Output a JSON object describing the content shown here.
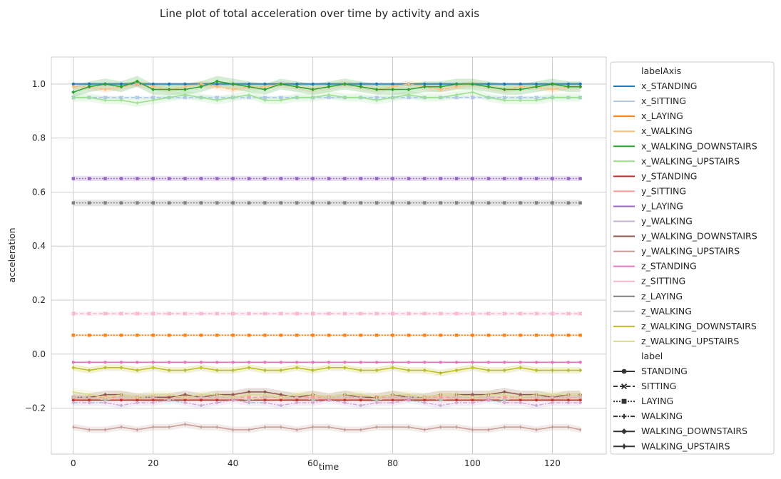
{
  "chart_data": {
    "type": "line",
    "title": "Line plot of total acceleration over time by activity and axis",
    "xlabel": "time",
    "ylabel": "acceleration",
    "xlim": [
      -5.5,
      133.5
    ],
    "ylim": [
      -0.37,
      1.1
    ],
    "xticks": [
      0,
      20,
      40,
      60,
      80,
      100,
      120
    ],
    "xtick_labels": [
      "0",
      "20",
      "40",
      "60",
      "80",
      "100",
      "120"
    ],
    "yticks": [
      -0.2,
      0.0,
      0.2,
      0.4,
      0.6,
      0.8,
      1.0
    ],
    "ytick_labels": [
      "−0.2",
      "0.0",
      "0.2",
      "0.4",
      "0.6",
      "0.8",
      "1.0"
    ],
    "grid": true,
    "legend_position": "outside-right",
    "legend_hue_title": "labelAxis",
    "legend_style_title": "label",
    "style_entries": [
      {
        "name": "STANDING",
        "marker": "circle",
        "dash": ""
      },
      {
        "name": "SITTING",
        "marker": "x",
        "dash": "6,3"
      },
      {
        "name": "LAYING",
        "marker": "square",
        "dash": "2,2"
      },
      {
        "name": "WALKING",
        "marker": "plus",
        "dash": "6,2,2,2"
      },
      {
        "name": "WALKING_DOWNSTAIRS",
        "marker": "diamond",
        "dash": ""
      },
      {
        "name": "WALKING_UPSTAIRS",
        "marker": "thin-diamond",
        "dash": ""
      }
    ],
    "x": [
      0,
      4,
      8,
      12,
      16,
      20,
      24,
      28,
      32,
      36,
      40,
      44,
      48,
      52,
      56,
      60,
      64,
      68,
      72,
      76,
      80,
      84,
      88,
      92,
      96,
      100,
      104,
      108,
      112,
      116,
      120,
      124,
      127
    ],
    "series": [
      {
        "name": "x_STANDING",
        "label": "STANDING",
        "color": "#1f77b4",
        "band": 0.006,
        "values": [
          1.0,
          1.0,
          1.0,
          1.0,
          1.0,
          1.0,
          1.0,
          1.0,
          1.0,
          1.0,
          1.0,
          1.0,
          1.0,
          1.0,
          1.0,
          1.0,
          1.0,
          1.0,
          1.0,
          1.0,
          1.0,
          1.0,
          1.0,
          1.0,
          1.0,
          1.0,
          1.0,
          1.0,
          1.0,
          1.0,
          1.0,
          1.0,
          1.0
        ]
      },
      {
        "name": "x_SITTING",
        "label": "SITTING",
        "color": "#aec7e8",
        "band": 0.006,
        "values": [
          0.95,
          0.95,
          0.95,
          0.95,
          0.95,
          0.95,
          0.95,
          0.95,
          0.95,
          0.95,
          0.95,
          0.95,
          0.95,
          0.95,
          0.95,
          0.95,
          0.95,
          0.95,
          0.95,
          0.95,
          0.95,
          0.95,
          0.95,
          0.95,
          0.95,
          0.95,
          0.95,
          0.95,
          0.95,
          0.95,
          0.95,
          0.95,
          0.95
        ]
      },
      {
        "name": "x_LAYING",
        "label": "LAYING",
        "color": "#ff7f0e",
        "band": 0.004,
        "values": [
          0.07,
          0.07,
          0.07,
          0.07,
          0.07,
          0.07,
          0.07,
          0.07,
          0.07,
          0.07,
          0.07,
          0.07,
          0.07,
          0.07,
          0.07,
          0.07,
          0.07,
          0.07,
          0.07,
          0.07,
          0.07,
          0.07,
          0.07,
          0.07,
          0.07,
          0.07,
          0.07,
          0.07,
          0.07,
          0.07,
          0.07,
          0.07,
          0.07
        ]
      },
      {
        "name": "x_WALKING",
        "label": "WALKING",
        "color": "#ffbb78",
        "band": 0.012,
        "values": [
          0.99,
          0.99,
          0.98,
          0.99,
          1.0,
          0.99,
          0.98,
          0.99,
          1.0,
          0.99,
          0.98,
          0.99,
          0.99,
          1.0,
          0.99,
          0.98,
          0.99,
          1.0,
          0.99,
          0.98,
          0.99,
          1.0,
          0.99,
          0.98,
          0.99,
          1.0,
          0.99,
          0.98,
          0.99,
          0.99,
          0.98,
          0.99,
          0.99
        ]
      },
      {
        "name": "x_WALKING_DOWNSTAIRS",
        "label": "WALKING_DOWNSTAIRS",
        "color": "#2ca02c",
        "band": 0.02,
        "values": [
          0.97,
          0.99,
          1.0,
          0.99,
          1.01,
          0.98,
          0.98,
          0.98,
          0.99,
          1.01,
          1.0,
          0.99,
          0.98,
          1.0,
          0.99,
          0.98,
          0.99,
          1.0,
          0.99,
          0.98,
          0.98,
          0.98,
          0.99,
          0.99,
          1.0,
          1.0,
          0.99,
          0.98,
          0.98,
          0.99,
          1.0,
          0.99,
          0.99
        ]
      },
      {
        "name": "x_WALKING_UPSTAIRS",
        "label": "WALKING_UPSTAIRS",
        "color": "#98df8a",
        "band": 0.015,
        "values": [
          0.95,
          0.95,
          0.94,
          0.94,
          0.93,
          0.94,
          0.95,
          0.96,
          0.95,
          0.94,
          0.95,
          0.96,
          0.94,
          0.94,
          0.95,
          0.95,
          0.96,
          0.95,
          0.95,
          0.94,
          0.95,
          0.96,
          0.95,
          0.95,
          0.96,
          0.97,
          0.95,
          0.94,
          0.94,
          0.94,
          0.95,
          0.95,
          0.95
        ]
      },
      {
        "name": "y_STANDING",
        "label": "STANDING",
        "color": "#d62728",
        "band": 0.005,
        "values": [
          -0.17,
          -0.17,
          -0.17,
          -0.17,
          -0.17,
          -0.17,
          -0.17,
          -0.17,
          -0.17,
          -0.17,
          -0.17,
          -0.17,
          -0.17,
          -0.17,
          -0.17,
          -0.17,
          -0.17,
          -0.17,
          -0.17,
          -0.17,
          -0.17,
          -0.17,
          -0.17,
          -0.17,
          -0.17,
          -0.17,
          -0.17,
          -0.17,
          -0.17,
          -0.17,
          -0.17,
          -0.17,
          -0.17
        ]
      },
      {
        "name": "y_SITTING",
        "label": "SITTING",
        "color": "#ff9896",
        "band": 0.006,
        "values": [
          -0.16,
          -0.16,
          -0.16,
          -0.16,
          -0.16,
          -0.16,
          -0.16,
          -0.16,
          -0.16,
          -0.16,
          -0.16,
          -0.16,
          -0.16,
          -0.16,
          -0.16,
          -0.16,
          -0.16,
          -0.16,
          -0.16,
          -0.16,
          -0.16,
          -0.16,
          -0.16,
          -0.16,
          -0.16,
          -0.16,
          -0.16,
          -0.16,
          -0.16,
          -0.16,
          -0.16,
          -0.16,
          -0.16
        ]
      },
      {
        "name": "y_LAYING",
        "label": "LAYING",
        "color": "#9467bd",
        "band": 0.01,
        "values": [
          0.65,
          0.65,
          0.65,
          0.65,
          0.65,
          0.65,
          0.65,
          0.65,
          0.65,
          0.65,
          0.65,
          0.65,
          0.65,
          0.65,
          0.65,
          0.65,
          0.65,
          0.65,
          0.65,
          0.65,
          0.65,
          0.65,
          0.65,
          0.65,
          0.65,
          0.65,
          0.65,
          0.65,
          0.65,
          0.65,
          0.65,
          0.65,
          0.65
        ]
      },
      {
        "name": "y_WALKING",
        "label": "WALKING",
        "color": "#c5b0d5",
        "band": 0.012,
        "values": [
          -0.18,
          -0.18,
          -0.18,
          -0.19,
          -0.18,
          -0.18,
          -0.17,
          -0.18,
          -0.19,
          -0.18,
          -0.17,
          -0.18,
          -0.18,
          -0.19,
          -0.18,
          -0.18,
          -0.17,
          -0.18,
          -0.19,
          -0.18,
          -0.18,
          -0.17,
          -0.18,
          -0.19,
          -0.18,
          -0.18,
          -0.17,
          -0.18,
          -0.18,
          -0.19,
          -0.18,
          -0.18,
          -0.18
        ]
      },
      {
        "name": "y_WALKING_DOWNSTAIRS",
        "label": "WALKING_DOWNSTAIRS",
        "color": "#8c564b",
        "band": 0.015,
        "values": [
          -0.16,
          -0.16,
          -0.15,
          -0.15,
          -0.16,
          -0.16,
          -0.16,
          -0.15,
          -0.16,
          -0.15,
          -0.15,
          -0.14,
          -0.14,
          -0.15,
          -0.16,
          -0.15,
          -0.16,
          -0.15,
          -0.16,
          -0.16,
          -0.15,
          -0.16,
          -0.16,
          -0.15,
          -0.15,
          -0.15,
          -0.15,
          -0.14,
          -0.15,
          -0.15,
          -0.16,
          -0.15,
          -0.15
        ]
      },
      {
        "name": "y_WALKING_UPSTAIRS",
        "label": "WALKING_UPSTAIRS",
        "color": "#c49c94",
        "band": 0.012,
        "values": [
          -0.27,
          -0.28,
          -0.28,
          -0.27,
          -0.28,
          -0.27,
          -0.27,
          -0.26,
          -0.27,
          -0.27,
          -0.28,
          -0.28,
          -0.27,
          -0.27,
          -0.28,
          -0.27,
          -0.27,
          -0.28,
          -0.28,
          -0.27,
          -0.27,
          -0.27,
          -0.28,
          -0.27,
          -0.27,
          -0.28,
          -0.28,
          -0.27,
          -0.27,
          -0.28,
          -0.27,
          -0.27,
          -0.28
        ]
      },
      {
        "name": "z_STANDING",
        "label": "STANDING",
        "color": "#e377c2",
        "band": 0.004,
        "values": [
          -0.03,
          -0.03,
          -0.03,
          -0.03,
          -0.03,
          -0.03,
          -0.03,
          -0.03,
          -0.03,
          -0.03,
          -0.03,
          -0.03,
          -0.03,
          -0.03,
          -0.03,
          -0.03,
          -0.03,
          -0.03,
          -0.03,
          -0.03,
          -0.03,
          -0.03,
          -0.03,
          -0.03,
          -0.03,
          -0.03,
          -0.03,
          -0.03,
          -0.03,
          -0.03,
          -0.03,
          -0.03,
          -0.03
        ]
      },
      {
        "name": "z_SITTING",
        "label": "SITTING",
        "color": "#f7b6d2",
        "band": 0.008,
        "values": [
          0.15,
          0.15,
          0.15,
          0.15,
          0.15,
          0.15,
          0.15,
          0.15,
          0.15,
          0.15,
          0.15,
          0.15,
          0.15,
          0.15,
          0.15,
          0.15,
          0.15,
          0.15,
          0.15,
          0.15,
          0.15,
          0.15,
          0.15,
          0.15,
          0.15,
          0.15,
          0.15,
          0.15,
          0.15,
          0.15,
          0.15,
          0.15,
          0.15
        ]
      },
      {
        "name": "z_LAYING",
        "label": "LAYING",
        "color": "#7f7f7f",
        "band": 0.012,
        "values": [
          0.56,
          0.56,
          0.56,
          0.56,
          0.56,
          0.56,
          0.56,
          0.56,
          0.56,
          0.56,
          0.56,
          0.56,
          0.56,
          0.56,
          0.56,
          0.56,
          0.56,
          0.56,
          0.56,
          0.56,
          0.56,
          0.56,
          0.56,
          0.56,
          0.56,
          0.56,
          0.56,
          0.56,
          0.56,
          0.56,
          0.56,
          0.56,
          0.56
        ]
      },
      {
        "name": "z_WALKING",
        "label": "WALKING",
        "color": "#c7c7c7",
        "band": 0.01,
        "values": [
          -0.16,
          -0.16,
          -0.17,
          -0.16,
          -0.16,
          -0.16,
          -0.17,
          -0.16,
          -0.16,
          -0.16,
          -0.16,
          -0.17,
          -0.16,
          -0.16,
          -0.16,
          -0.17,
          -0.16,
          -0.16,
          -0.16,
          -0.17,
          -0.16,
          -0.16,
          -0.16,
          -0.17,
          -0.16,
          -0.16,
          -0.16,
          -0.17,
          -0.16,
          -0.16,
          -0.16,
          -0.16,
          -0.16
        ]
      },
      {
        "name": "z_WALKING_DOWNSTAIRS",
        "label": "WALKING_DOWNSTAIRS",
        "color": "#bcbd22",
        "band": 0.012,
        "values": [
          -0.05,
          -0.06,
          -0.05,
          -0.05,
          -0.06,
          -0.05,
          -0.06,
          -0.06,
          -0.05,
          -0.06,
          -0.06,
          -0.05,
          -0.06,
          -0.06,
          -0.05,
          -0.06,
          -0.05,
          -0.05,
          -0.06,
          -0.06,
          -0.05,
          -0.06,
          -0.06,
          -0.07,
          -0.06,
          -0.05,
          -0.06,
          -0.06,
          -0.05,
          -0.06,
          -0.06,
          -0.06,
          -0.06
        ]
      },
      {
        "name": "z_WALKING_UPSTAIRS",
        "label": "WALKING_UPSTAIRS",
        "color": "#dbdb8d",
        "band": 0.015,
        "values": [
          -0.14,
          -0.15,
          -0.16,
          -0.15,
          -0.16,
          -0.15,
          -0.15,
          -0.16,
          -0.15,
          -0.15,
          -0.16,
          -0.15,
          -0.15,
          -0.16,
          -0.15,
          -0.15,
          -0.16,
          -0.15,
          -0.15,
          -0.16,
          -0.15,
          -0.15,
          -0.16,
          -0.15,
          -0.15,
          -0.16,
          -0.15,
          -0.15,
          -0.16,
          -0.15,
          -0.15,
          -0.15,
          -0.15
        ]
      }
    ]
  }
}
